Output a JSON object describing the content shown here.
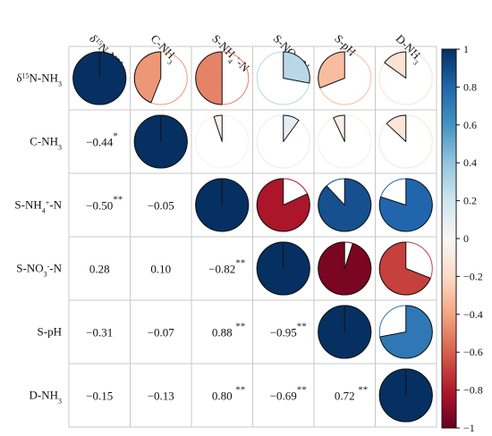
{
  "chart_data": {
    "type": "heatmap",
    "subtype": "correlation-matrix",
    "variables": [
      {
        "main": "δ",
        "sup": "15",
        "rest": "N-NH",
        "sub": "3",
        "post": ""
      },
      {
        "main": "C-NH",
        "sup": "",
        "rest": "",
        "sub": "3",
        "post": ""
      },
      {
        "main": "S-NH",
        "sup": "",
        "rest": "",
        "sub": "4",
        "post": "-N",
        "sup2": "+"
      },
      {
        "main": "S-NO",
        "sup": "",
        "rest": "",
        "sub": "3",
        "post": "-N",
        "sup2": "-"
      },
      {
        "main": "S-pH",
        "sup": "",
        "rest": "",
        "sub": "",
        "post": ""
      },
      {
        "main": "D-NH",
        "sup": "",
        "rest": "",
        "sub": "3",
        "post": ""
      }
    ],
    "matrix": [
      [
        1.0,
        -0.44,
        -0.5,
        0.28,
        -0.31,
        -0.15
      ],
      [
        -0.44,
        1.0,
        -0.05,
        0.1,
        -0.07,
        -0.13
      ],
      [
        -0.5,
        -0.05,
        1.0,
        -0.82,
        0.88,
        0.8
      ],
      [
        0.28,
        0.1,
        -0.82,
        1.0,
        -0.95,
        -0.69
      ],
      [
        -0.31,
        -0.07,
        0.88,
        -0.95,
        1.0,
        0.72
      ],
      [
        -0.15,
        -0.13,
        0.8,
        -0.69,
        0.72,
        1.0
      ]
    ],
    "labels_lower": [
      [
        "",
        "",
        "",
        "",
        "",
        ""
      ],
      [
        "−0.44",
        "",
        "",
        "",
        "",
        ""
      ],
      [
        "−0.50",
        "−0.05",
        "",
        "",
        "",
        ""
      ],
      [
        "0.28",
        "0.10",
        "−0.82",
        "",
        "",
        ""
      ],
      [
        "−0.31",
        "−0.07",
        "0.88",
        "−0.95",
        "",
        ""
      ],
      [
        "−0.15",
        "−0.13",
        "0.80",
        "−0.69",
        "0.72",
        ""
      ]
    ],
    "significance_lower": [
      [
        "",
        "",
        "",
        "",
        "",
        ""
      ],
      [
        "*",
        "",
        "",
        "",
        "",
        ""
      ],
      [
        "**",
        "",
        "",
        "",
        "",
        ""
      ],
      [
        "",
        "",
        "**",
        "",
        "",
        ""
      ],
      [
        "",
        "",
        "**",
        "**",
        "",
        ""
      ],
      [
        "",
        "",
        "**",
        "**",
        "**",
        ""
      ]
    ],
    "upper_display": "pie",
    "colorbar": {
      "range": [
        -1,
        1
      ],
      "ticks": [
        "1",
        "0.8",
        "0.6",
        "0.4",
        "0.2",
        "0",
        "−0.2",
        "−0.4",
        "−0.6",
        "−0.8",
        "−1"
      ],
      "tick_values": [
        1,
        0.8,
        0.6,
        0.4,
        0.2,
        0,
        -0.2,
        -0.4,
        -0.6,
        -0.8,
        -1
      ],
      "colors_high_to_low": [
        "#053061",
        "#2166ac",
        "#4393c3",
        "#92c5de",
        "#d1e5f0",
        "#f7f7f7",
        "#fddbc7",
        "#f4a582",
        "#d6604d",
        "#b2182b",
        "#67001f"
      ]
    }
  }
}
